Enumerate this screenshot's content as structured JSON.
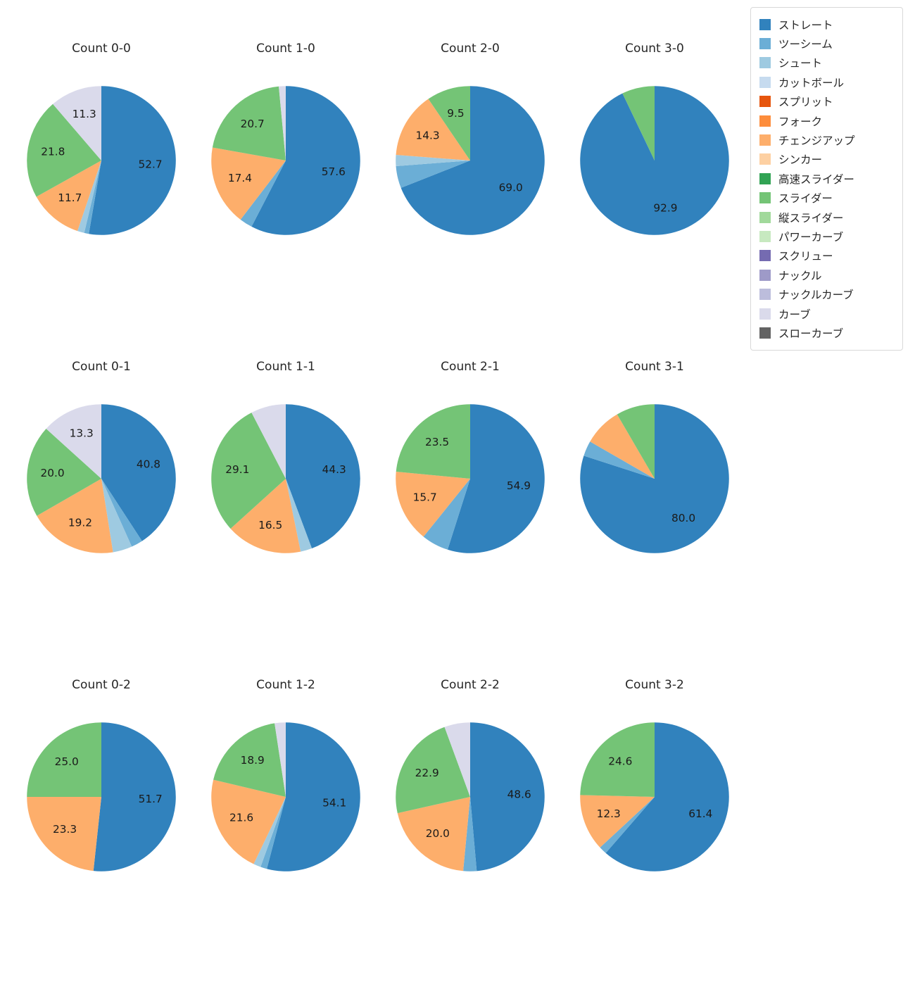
{
  "palette": {
    "ストレート": "#3182bd",
    "ツーシーム": "#6baed6",
    "シュート": "#9ecae1",
    "カットボール": "#c6dbef",
    "スプリット": "#e6550d",
    "フォーク": "#fd8d3c",
    "チェンジアップ": "#fdae6b",
    "シンカー": "#fdd0a2",
    "高速スライダー": "#31a354",
    "スライダー": "#74c476",
    "縦スライダー": "#a1d99b",
    "パワーカーブ": "#c7e9c0",
    "スクリュー": "#756bb1",
    "ナックル": "#9e9ac8",
    "ナックルカーブ": "#bcbddc",
    "カーブ": "#dadaeb",
    "スローカーブ": "#636363"
  },
  "legend": {
    "position": "top-right",
    "entries": [
      {
        "label": "ストレート"
      },
      {
        "label": "ツーシーム"
      },
      {
        "label": "シュート"
      },
      {
        "label": "カットボール"
      },
      {
        "label": "スプリット"
      },
      {
        "label": "フォーク"
      },
      {
        "label": "チェンジアップ"
      },
      {
        "label": "シンカー"
      },
      {
        "label": "高速スライダー"
      },
      {
        "label": "スライダー"
      },
      {
        "label": "縦スライダー"
      },
      {
        "label": "パワーカーブ"
      },
      {
        "label": "スクリュー"
      },
      {
        "label": "ナックル"
      },
      {
        "label": "ナックルカーブ"
      },
      {
        "label": "カーブ"
      },
      {
        "label": "スローカーブ"
      }
    ]
  },
  "chart_data": [
    {
      "type": "pie",
      "title": "Count 0-0",
      "start_angle_deg": 90,
      "direction": "clockwise",
      "slices": [
        {
          "label": "ストレート",
          "value": 52.7,
          "pct_label": "52.7"
        },
        {
          "label": "ツーシーム",
          "value": 1.0,
          "pct_label": ""
        },
        {
          "label": "シュート",
          "value": 1.5,
          "pct_label": ""
        },
        {
          "label": "チェンジアップ",
          "value": 11.7,
          "pct_label": "11.7"
        },
        {
          "label": "スライダー",
          "value": 21.8,
          "pct_label": "21.8"
        },
        {
          "label": "カーブ",
          "value": 11.3,
          "pct_label": "11.3"
        }
      ]
    },
    {
      "type": "pie",
      "title": "Count 1-0",
      "start_angle_deg": 90,
      "direction": "clockwise",
      "slices": [
        {
          "label": "ストレート",
          "value": 57.6,
          "pct_label": "57.6"
        },
        {
          "label": "ツーシーム",
          "value": 2.8,
          "pct_label": ""
        },
        {
          "label": "チェンジアップ",
          "value": 17.4,
          "pct_label": "17.4"
        },
        {
          "label": "スライダー",
          "value": 20.7,
          "pct_label": "20.7"
        },
        {
          "label": "カーブ",
          "value": 1.5,
          "pct_label": ""
        }
      ]
    },
    {
      "type": "pie",
      "title": "Count 2-0",
      "start_angle_deg": 90,
      "direction": "clockwise",
      "slices": [
        {
          "label": "ストレート",
          "value": 69.0,
          "pct_label": "69.0"
        },
        {
          "label": "ツーシーム",
          "value": 4.8,
          "pct_label": ""
        },
        {
          "label": "シュート",
          "value": 2.4,
          "pct_label": ""
        },
        {
          "label": "チェンジアップ",
          "value": 14.3,
          "pct_label": "14.3"
        },
        {
          "label": "スライダー",
          "value": 9.5,
          "pct_label": "9.5"
        }
      ]
    },
    {
      "type": "pie",
      "title": "Count 3-0",
      "start_angle_deg": 90,
      "direction": "clockwise",
      "slices": [
        {
          "label": "ストレート",
          "value": 92.9,
          "pct_label": "92.9"
        },
        {
          "label": "スライダー",
          "value": 7.1,
          "pct_label": ""
        }
      ]
    },
    {
      "type": "pie",
      "title": "Count 0-1",
      "start_angle_deg": 90,
      "direction": "clockwise",
      "slices": [
        {
          "label": "ストレート",
          "value": 40.8,
          "pct_label": "40.8"
        },
        {
          "label": "ツーシーム",
          "value": 2.5,
          "pct_label": ""
        },
        {
          "label": "シュート",
          "value": 4.2,
          "pct_label": ""
        },
        {
          "label": "チェンジアップ",
          "value": 19.2,
          "pct_label": "19.2"
        },
        {
          "label": "スライダー",
          "value": 20.0,
          "pct_label": "20.0"
        },
        {
          "label": "カーブ",
          "value": 13.3,
          "pct_label": "13.3"
        }
      ]
    },
    {
      "type": "pie",
      "title": "Count 1-1",
      "start_angle_deg": 90,
      "direction": "clockwise",
      "slices": [
        {
          "label": "ストレート",
          "value": 44.3,
          "pct_label": "44.3"
        },
        {
          "label": "シュート",
          "value": 2.5,
          "pct_label": ""
        },
        {
          "label": "チェンジアップ",
          "value": 16.5,
          "pct_label": "16.5"
        },
        {
          "label": "スライダー",
          "value": 29.1,
          "pct_label": "29.1"
        },
        {
          "label": "カーブ",
          "value": 7.6,
          "pct_label": ""
        }
      ]
    },
    {
      "type": "pie",
      "title": "Count 2-1",
      "start_angle_deg": 90,
      "direction": "clockwise",
      "slices": [
        {
          "label": "ストレート",
          "value": 54.9,
          "pct_label": "54.9"
        },
        {
          "label": "ツーシーム",
          "value": 5.9,
          "pct_label": ""
        },
        {
          "label": "チェンジアップ",
          "value": 15.7,
          "pct_label": "15.7"
        },
        {
          "label": "スライダー",
          "value": 23.5,
          "pct_label": "23.5"
        }
      ]
    },
    {
      "type": "pie",
      "title": "Count 3-1",
      "start_angle_deg": 90,
      "direction": "clockwise",
      "slices": [
        {
          "label": "ストレート",
          "value": 80.0,
          "pct_label": "80.0"
        },
        {
          "label": "ツーシーム",
          "value": 3.3,
          "pct_label": ""
        },
        {
          "label": "チェンジアップ",
          "value": 8.3,
          "pct_label": ""
        },
        {
          "label": "スライダー",
          "value": 8.4,
          "pct_label": ""
        }
      ]
    },
    {
      "type": "pie",
      "title": "Count 0-2",
      "start_angle_deg": 90,
      "direction": "clockwise",
      "slices": [
        {
          "label": "ストレート",
          "value": 51.7,
          "pct_label": "51.7"
        },
        {
          "label": "チェンジアップ",
          "value": 23.3,
          "pct_label": "23.3"
        },
        {
          "label": "スライダー",
          "value": 25.0,
          "pct_label": "25.0"
        }
      ]
    },
    {
      "type": "pie",
      "title": "Count 1-2",
      "start_angle_deg": 90,
      "direction": "clockwise",
      "slices": [
        {
          "label": "ストレート",
          "value": 54.1,
          "pct_label": "54.1"
        },
        {
          "label": "ツーシーム",
          "value": 1.4,
          "pct_label": ""
        },
        {
          "label": "シュート",
          "value": 1.6,
          "pct_label": ""
        },
        {
          "label": "チェンジアップ",
          "value": 21.6,
          "pct_label": "21.6"
        },
        {
          "label": "スライダー",
          "value": 18.9,
          "pct_label": "18.9"
        },
        {
          "label": "カーブ",
          "value": 2.4,
          "pct_label": ""
        }
      ]
    },
    {
      "type": "pie",
      "title": "Count 2-2",
      "start_angle_deg": 90,
      "direction": "clockwise",
      "slices": [
        {
          "label": "ストレート",
          "value": 48.6,
          "pct_label": "48.6"
        },
        {
          "label": "ツーシーム",
          "value": 2.9,
          "pct_label": ""
        },
        {
          "label": "チェンジアップ",
          "value": 20.0,
          "pct_label": "20.0"
        },
        {
          "label": "スライダー",
          "value": 22.9,
          "pct_label": "22.9"
        },
        {
          "label": "カーブ",
          "value": 5.6,
          "pct_label": ""
        }
      ]
    },
    {
      "type": "pie",
      "title": "Count 3-2",
      "start_angle_deg": 90,
      "direction": "clockwise",
      "slices": [
        {
          "label": "ストレート",
          "value": 61.4,
          "pct_label": "61.4"
        },
        {
          "label": "ツーシーム",
          "value": 1.7,
          "pct_label": ""
        },
        {
          "label": "チェンジアップ",
          "value": 12.3,
          "pct_label": "12.3"
        },
        {
          "label": "スライダー",
          "value": 24.6,
          "pct_label": "24.6"
        }
      ]
    }
  ]
}
